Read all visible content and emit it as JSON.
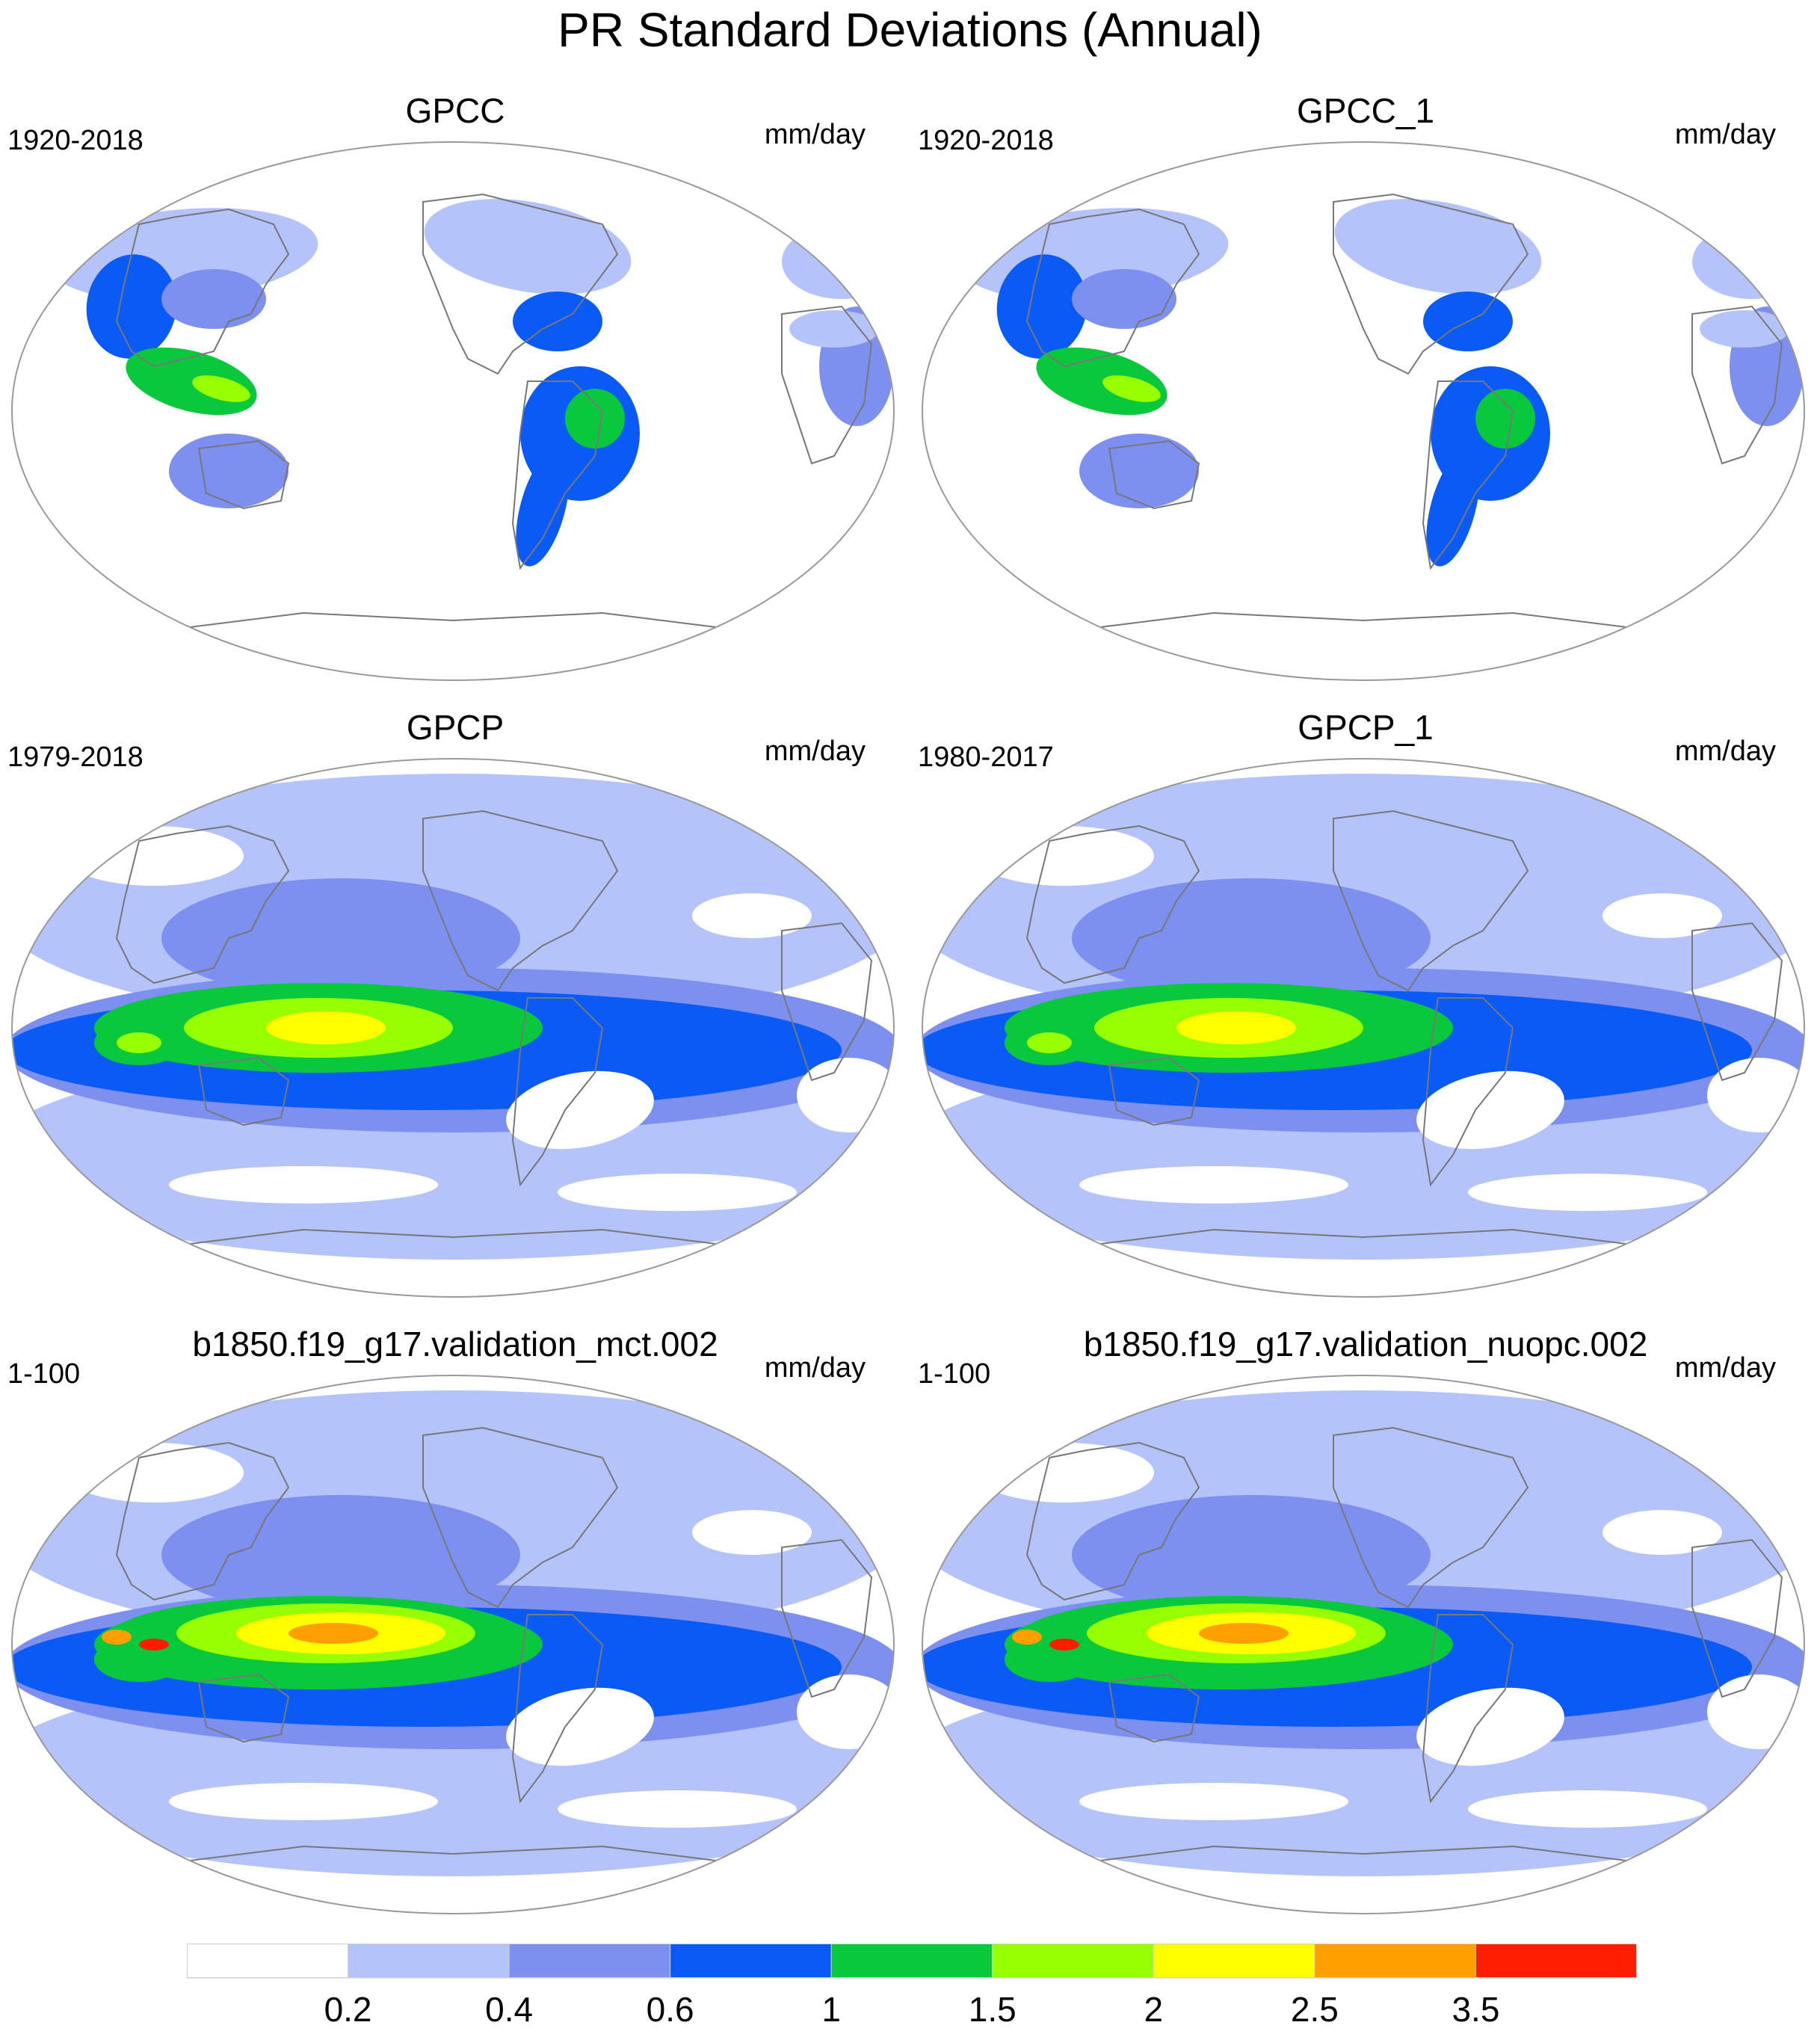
{
  "main_title": "PR Standard Deviations (Annual)",
  "panels": [
    {
      "title": "GPCC",
      "years": "1920-2018",
      "units": "mm/day",
      "kind": "land"
    },
    {
      "title": "GPCC_1",
      "years": "1920-2018",
      "units": "mm/day",
      "kind": "land"
    },
    {
      "title": "GPCP",
      "years": "1979-2018",
      "units": "mm/day",
      "kind": "obs"
    },
    {
      "title": "GPCP_1",
      "years": "1980-2017",
      "units": "mm/day",
      "kind": "obs"
    },
    {
      "title": "b1850.f19_g17.validation_mct.002",
      "years": "1-100",
      "units": "mm/day",
      "kind": "model"
    },
    {
      "title": "b1850.f19_g17.validation_nuopc.002",
      "years": "1-100",
      "units": "mm/day",
      "kind": "model"
    }
  ],
  "colorbar": {
    "colors": [
      "#ffffff",
      "#b4c3fa",
      "#7d90f0",
      "#0a5af5",
      "#0ac83c",
      "#96ff00",
      "#ffff00",
      "#ffa000",
      "#ff1e00"
    ],
    "labels": [
      "0.2",
      "0.4",
      "0.6",
      "1",
      "1.5",
      "2",
      "2.5",
      "3.5"
    ]
  }
}
